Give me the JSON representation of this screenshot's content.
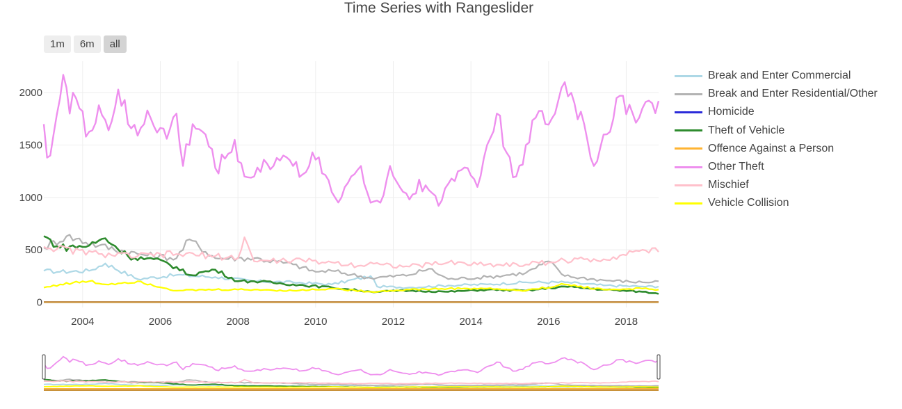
{
  "chart_data": {
    "type": "line",
    "title": "Time Series with Rangeslider",
    "xlabel": "",
    "ylabel": "",
    "xlim": [
      "2003-01",
      "2018-11"
    ],
    "ylim": [
      -50,
      2300
    ],
    "yticks": [
      0,
      500,
      1000,
      1500,
      2000
    ],
    "xticks": [
      "2004",
      "2006",
      "2008",
      "2010",
      "2012",
      "2014",
      "2016",
      "2018"
    ],
    "grid": true,
    "legend_position": "right",
    "range_buttons": [
      "1m",
      "6m",
      "all"
    ],
    "active_range_button": "all",
    "rangeslider": true,
    "series": [
      {
        "name": "Break and Enter Commercial",
        "color": "#add8e6",
        "width": 2.2,
        "anchors": [
          [
            "2003-01",
            300
          ],
          [
            "2003-06",
            290
          ],
          [
            "2004-03",
            300
          ],
          [
            "2004-08",
            370
          ],
          [
            "2005-06",
            220
          ],
          [
            "2006-06",
            260
          ],
          [
            "2007-06",
            240
          ],
          [
            "2008-06",
            200
          ],
          [
            "2009-06",
            190
          ],
          [
            "2010-06",
            170
          ],
          [
            "2011-06",
            250
          ],
          [
            "2011-08",
            150
          ],
          [
            "2012-06",
            140
          ],
          [
            "2013-06",
            160
          ],
          [
            "2014-06",
            170
          ],
          [
            "2015-06",
            190
          ],
          [
            "2016-06",
            190
          ],
          [
            "2017-06",
            160
          ],
          [
            "2018-06",
            150
          ],
          [
            "2018-11",
            150
          ]
        ]
      },
      {
        "name": "Break and Enter Residential/Other",
        "color": "#b3b3b3",
        "width": 2.2,
        "anchors": [
          [
            "2003-01",
            520
          ],
          [
            "2003-08",
            630
          ],
          [
            "2004-06",
            540
          ],
          [
            "2005-06",
            460
          ],
          [
            "2006-06",
            420
          ],
          [
            "2006-10",
            600
          ],
          [
            "2007-06",
            420
          ],
          [
            "2008-06",
            420
          ],
          [
            "2009-06",
            360
          ],
          [
            "2010-01",
            290
          ],
          [
            "2010-06",
            300
          ],
          [
            "2011-06",
            230
          ],
          [
            "2012-06",
            260
          ],
          [
            "2012-12",
            320
          ],
          [
            "2013-06",
            220
          ],
          [
            "2014-06",
            240
          ],
          [
            "2015-06",
            280
          ],
          [
            "2016-01",
            390
          ],
          [
            "2016-06",
            250
          ],
          [
            "2017-06",
            210
          ],
          [
            "2018-06",
            190
          ],
          [
            "2018-11",
            200
          ]
        ]
      },
      {
        "name": "Homicide",
        "color": "#2b2bd9",
        "width": 2.2,
        "anchors": [
          [
            "2003-01",
            2
          ],
          [
            "2018-11",
            2
          ]
        ]
      },
      {
        "name": "Theft of Vehicle",
        "color": "#2e8b2e",
        "width": 2.6,
        "anchors": [
          [
            "2003-01",
            630
          ],
          [
            "2003-06",
            520
          ],
          [
            "2004-03",
            540
          ],
          [
            "2004-08",
            610
          ],
          [
            "2005-03",
            440
          ],
          [
            "2006-03",
            380
          ],
          [
            "2006-10",
            260
          ],
          [
            "2007-06",
            310
          ],
          [
            "2008-01",
            200
          ],
          [
            "2008-06",
            200
          ],
          [
            "2009-06",
            170
          ],
          [
            "2010-06",
            140
          ],
          [
            "2011-06",
            100
          ],
          [
            "2012-06",
            110
          ],
          [
            "2013-06",
            100
          ],
          [
            "2014-06",
            120
          ],
          [
            "2015-06",
            110
          ],
          [
            "2016-06",
            150
          ],
          [
            "2017-06",
            120
          ],
          [
            "2018-06",
            100
          ],
          [
            "2018-11",
            80
          ]
        ]
      },
      {
        "name": "Offence Against a Person",
        "color": "#ffb432",
        "width": 2.2,
        "anchors": [
          [
            "2003-01",
            1
          ],
          [
            "2018-11",
            1
          ]
        ]
      },
      {
        "name": "Other Theft",
        "color": "#ee8fee",
        "width": 2.4,
        "anchors": [
          [
            "2003-01",
            1700
          ],
          [
            "2003-02",
            1380
          ],
          [
            "2003-04",
            1600
          ],
          [
            "2003-07",
            2170
          ],
          [
            "2003-09",
            1800
          ],
          [
            "2003-10",
            2000
          ],
          [
            "2003-12",
            1850
          ],
          [
            "2004-02",
            1580
          ],
          [
            "2004-06",
            1880
          ],
          [
            "2004-09",
            1640
          ],
          [
            "2004-12",
            2030
          ],
          [
            "2005-03",
            1700
          ],
          [
            "2005-06",
            1590
          ],
          [
            "2005-09",
            1830
          ],
          [
            "2006-03",
            1560
          ],
          [
            "2006-06",
            1800
          ],
          [
            "2006-08",
            1300
          ],
          [
            "2006-11",
            1700
          ],
          [
            "2007-03",
            1600
          ],
          [
            "2007-06",
            1280
          ],
          [
            "2007-09",
            1370
          ],
          [
            "2007-12",
            1550
          ],
          [
            "2008-03",
            1200
          ],
          [
            "2008-06",
            1200
          ],
          [
            "2008-09",
            1360
          ],
          [
            "2008-12",
            1300
          ],
          [
            "2009-03",
            1400
          ],
          [
            "2009-06",
            1300
          ],
          [
            "2009-09",
            1220
          ],
          [
            "2009-12",
            1430
          ],
          [
            "2010-03",
            1230
          ],
          [
            "2010-06",
            1050
          ],
          [
            "2010-09",
            1000
          ],
          [
            "2010-12",
            1200
          ],
          [
            "2011-03",
            1300
          ],
          [
            "2011-06",
            950
          ],
          [
            "2011-09",
            950
          ],
          [
            "2011-12",
            1300
          ],
          [
            "2012-03",
            1100
          ],
          [
            "2012-06",
            980
          ],
          [
            "2012-09",
            1170
          ],
          [
            "2012-12",
            1070
          ],
          [
            "2013-03",
            920
          ],
          [
            "2013-06",
            1130
          ],
          [
            "2013-09",
            1250
          ],
          [
            "2013-12",
            1280
          ],
          [
            "2014-03",
            1100
          ],
          [
            "2014-06",
            1500
          ],
          [
            "2014-09",
            1800
          ],
          [
            "2014-12",
            1430
          ],
          [
            "2015-03",
            1200
          ],
          [
            "2015-06",
            1500
          ],
          [
            "2015-09",
            1760
          ],
          [
            "2015-12",
            1700
          ],
          [
            "2016-03",
            1800
          ],
          [
            "2016-06",
            2100
          ],
          [
            "2016-09",
            1900
          ],
          [
            "2016-12",
            1700
          ],
          [
            "2017-03",
            1300
          ],
          [
            "2017-06",
            1600
          ],
          [
            "2017-09",
            1750
          ],
          [
            "2017-12",
            1970
          ],
          [
            "2018-03",
            1800
          ],
          [
            "2018-06",
            1850
          ],
          [
            "2018-09",
            1900
          ],
          [
            "2018-11",
            1920
          ]
        ]
      },
      {
        "name": "Mischief",
        "color": "#ffc0cb",
        "width": 2.2,
        "anchors": [
          [
            "2003-01",
            530
          ],
          [
            "2004-06",
            460
          ],
          [
            "2005-06",
            440
          ],
          [
            "2006-06",
            460
          ],
          [
            "2007-06",
            440
          ],
          [
            "2008-01",
            420
          ],
          [
            "2008-03",
            620
          ],
          [
            "2008-06",
            390
          ],
          [
            "2009-06",
            400
          ],
          [
            "2010-06",
            380
          ],
          [
            "2011-03",
            350
          ],
          [
            "2011-06",
            380
          ],
          [
            "2011-09",
            360
          ],
          [
            "2012-06",
            340
          ],
          [
            "2013-06",
            380
          ],
          [
            "2014-06",
            360
          ],
          [
            "2015-06",
            360
          ],
          [
            "2016-06",
            400
          ],
          [
            "2017-06",
            410
          ],
          [
            "2018-03",
            480
          ],
          [
            "2018-06",
            500
          ],
          [
            "2018-11",
            480
          ]
        ]
      },
      {
        "name": "Vehicle Collision",
        "color": "#ffff00",
        "width": 2.2,
        "anchors": [
          [
            "2003-01",
            140
          ],
          [
            "2003-06",
            170
          ],
          [
            "2004-03",
            200
          ],
          [
            "2004-08",
            170
          ],
          [
            "2005-06",
            200
          ],
          [
            "2006-06",
            110
          ],
          [
            "2007-06",
            120
          ],
          [
            "2008-06",
            120
          ],
          [
            "2009-06",
            110
          ],
          [
            "2010-06",
            130
          ],
          [
            "2011-06",
            100
          ],
          [
            "2012-06",
            120
          ],
          [
            "2013-06",
            130
          ],
          [
            "2014-06",
            130
          ],
          [
            "2015-06",
            110
          ],
          [
            "2016-06",
            170
          ],
          [
            "2017-06",
            120
          ],
          [
            "2018-06",
            130
          ],
          [
            "2018-11",
            120
          ]
        ]
      }
    ]
  }
}
